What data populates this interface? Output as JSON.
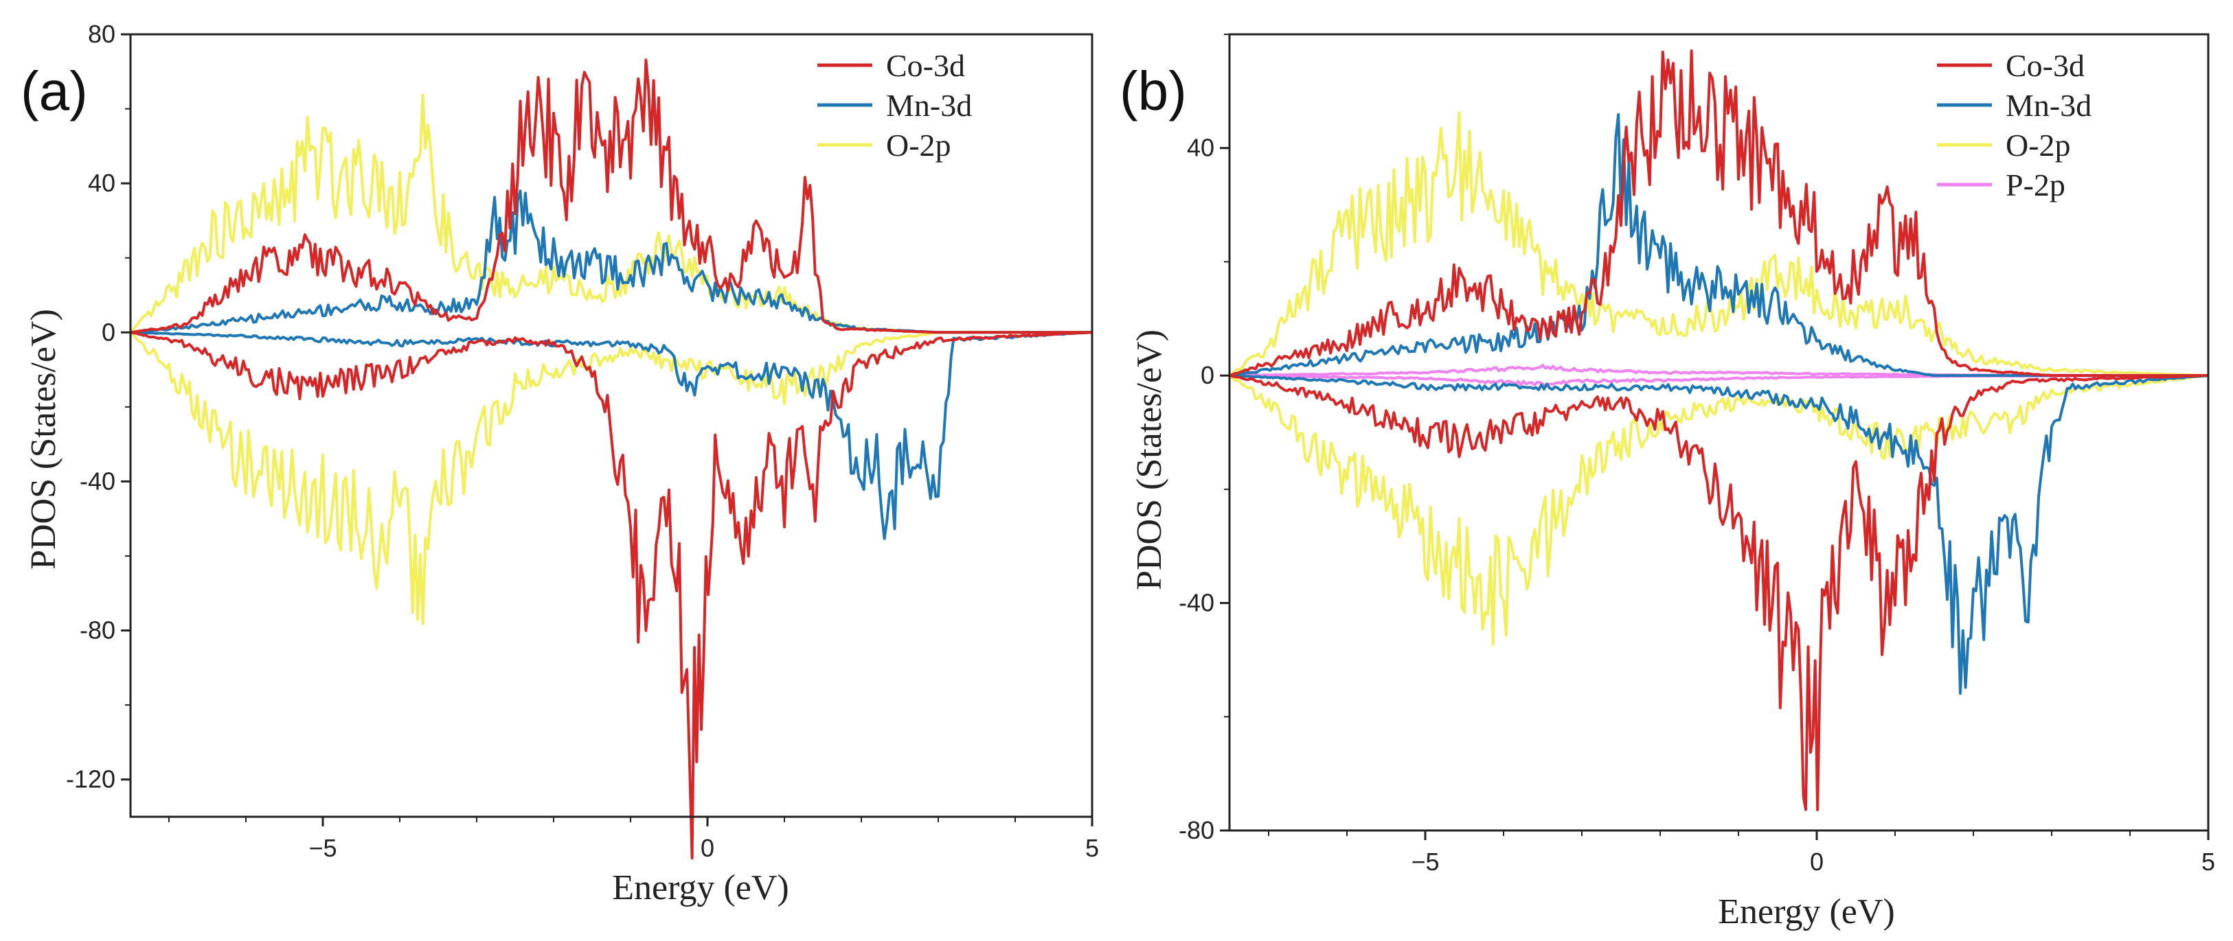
{
  "colors": {
    "Co-3d": "#d62728",
    "Mn-3d": "#1f77b4",
    "O-2p": "#f2ef5c",
    "P-2p": "#ee82ee"
  },
  "chart_data": [
    {
      "type": "line",
      "panel_label": "(a)",
      "xlabel": "Energy (eV)",
      "ylabel": "PDOS (States/eV)",
      "xlim": [
        -7.5,
        5
      ],
      "ylim": [
        -130,
        80
      ],
      "xticks": [
        -5,
        0,
        5
      ],
      "xtick_labels": [
        "−5",
        "0",
        "5"
      ],
      "yticks": [
        -120,
        -80,
        -40,
        0,
        40,
        80
      ],
      "ytick_labels": [
        "-120",
        "-80",
        "-40",
        "0",
        "40",
        "80"
      ],
      "legend_position": "top-right",
      "series": [
        {
          "name": "Co-3d",
          "x_up": [
            -7.5,
            -6.8,
            -6.3,
            -5.8,
            -5.3,
            -4.7,
            -4.0,
            -3.5,
            -3.0,
            -2.6,
            -2.4,
            -2.2,
            -2.0,
            -1.8,
            -1.6,
            -1.3,
            -1.1,
            -0.8,
            -0.6,
            -0.4,
            -0.2,
            0.0,
            0.2,
            0.4,
            0.6,
            0.8,
            1.0,
            1.2,
            1.3,
            1.5,
            1.7,
            3.0,
            5.0
          ],
          "up": [
            0,
            2,
            10,
            18,
            22,
            18,
            12,
            5,
            3,
            30,
            55,
            60,
            50,
            40,
            68,
            45,
            55,
            62,
            48,
            35,
            25,
            22,
            12,
            15,
            25,
            20,
            15,
            22,
            40,
            3,
            1,
            0,
            0
          ],
          "x_down": [
            -7.5,
            -6.8,
            -6.3,
            -5.8,
            -5.3,
            -4.7,
            -4.0,
            -3.5,
            -3.0,
            -2.5,
            -2.0,
            -1.5,
            -1.2,
            -1.0,
            -0.8,
            -0.6,
            -0.4,
            -0.3,
            -0.2,
            -0.05,
            0.1,
            0.3,
            0.5,
            0.8,
            1.0,
            1.2,
            1.4,
            1.6,
            2.0,
            3.0,
            5.0
          ],
          "down": [
            0,
            -3,
            -8,
            -12,
            -15,
            -13,
            -10,
            -6,
            -3,
            -2,
            -3,
            -10,
            -30,
            -60,
            -75,
            -40,
            -60,
            -85,
            -112,
            -80,
            -30,
            -40,
            -55,
            -30,
            -45,
            -25,
            -40,
            -20,
            -8,
            -2,
            0
          ]
        },
        {
          "name": "Mn-3d",
          "x_up": [
            -7.5,
            -6.5,
            -5.8,
            -5.0,
            -4.2,
            -3.6,
            -3.0,
            -2.8,
            -2.6,
            -2.4,
            -2.2,
            -2.0,
            -1.5,
            -1.0,
            -0.5,
            0.0,
            0.5,
            1.0,
            1.5,
            2.0,
            3.0,
            5.0
          ],
          "up": [
            0,
            2,
            4,
            6,
            8,
            6,
            8,
            30,
            20,
            36,
            25,
            20,
            18,
            15,
            20,
            12,
            10,
            8,
            3,
            1,
            0,
            0
          ],
          "x_down": [
            -7.5,
            -6.0,
            -5.0,
            -4.0,
            -3.0,
            -2.0,
            -1.0,
            -0.5,
            -0.2,
            0.0,
            0.5,
            1.0,
            1.5,
            1.8,
            2.0,
            2.2,
            2.3,
            2.5,
            2.8,
            3.0,
            3.2,
            5.0
          ],
          "down": [
            0,
            -1,
            -2,
            -3,
            -2,
            -3,
            -3,
            -5,
            -18,
            -8,
            -12,
            -10,
            -15,
            -25,
            -40,
            -30,
            -58,
            -35,
            -30,
            -40,
            -2,
            0
          ]
        },
        {
          "name": "O-2p",
          "x_up": [
            -7.5,
            -7.0,
            -6.5,
            -6.0,
            -5.5,
            -5.2,
            -4.8,
            -4.5,
            -4.0,
            -3.7,
            -3.3,
            -3.0,
            -2.5,
            -2.0,
            -1.5,
            -1.0,
            -0.5,
            0.0,
            0.5,
            1.0,
            1.5,
            2.0,
            3.0,
            5.0
          ],
          "up": [
            0,
            10,
            25,
            30,
            35,
            48,
            42,
            45,
            35,
            50,
            20,
            15,
            12,
            14,
            10,
            15,
            25,
            12,
            8,
            10,
            3,
            1,
            0,
            0
          ],
          "x_down": [
            -7.5,
            -7.0,
            -6.5,
            -6.0,
            -5.5,
            -5.0,
            -4.5,
            -4.3,
            -4.0,
            -3.7,
            -3.5,
            -3.0,
            -2.5,
            -2.0,
            -1.5,
            -1.0,
            -0.5,
            0.0,
            0.5,
            1.0,
            1.5,
            2.0,
            3.0,
            5.0
          ],
          "down": [
            0,
            -10,
            -25,
            -35,
            -40,
            -45,
            -50,
            -55,
            -50,
            -70,
            -45,
            -30,
            -15,
            -10,
            -8,
            -5,
            -8,
            -10,
            -12,
            -15,
            -12,
            -3,
            0,
            0
          ]
        }
      ]
    },
    {
      "type": "line",
      "panel_label": "(b)",
      "xlabel": "Energy (eV)",
      "ylabel": "PDOS (States/eV)",
      "xlim": [
        -7.5,
        5
      ],
      "ylim": [
        -80,
        60
      ],
      "xticks": [
        -5,
        0,
        5
      ],
      "xtick_labels": [
        "−5",
        "0",
        "5"
      ],
      "yticks": [
        -80,
        -40,
        0,
        40
      ],
      "ytick_labels": [
        "-80",
        "-40",
        "0",
        "40"
      ],
      "legend_position": "top-right",
      "series": [
        {
          "name": "Co-3d",
          "x_up": [
            -7.5,
            -6.8,
            -6.0,
            -5.5,
            -5.0,
            -4.5,
            -4.0,
            -3.5,
            -3.0,
            -2.6,
            -2.4,
            -2.2,
            -2.0,
            -1.8,
            -1.5,
            -1.0,
            -0.5,
            0.0,
            0.3,
            0.6,
            0.9,
            1.0,
            1.2,
            1.4,
            1.6,
            1.8,
            2.0,
            3.0,
            5.0
          ],
          "up": [
            0,
            3,
            6,
            10,
            12,
            18,
            12,
            8,
            10,
            20,
            38,
            45,
            48,
            46,
            45,
            42,
            35,
            25,
            15,
            20,
            30,
            22,
            28,
            15,
            5,
            2,
            1,
            0,
            0
          ],
          "x_down": [
            -7.5,
            -6.8,
            -6.0,
            -5.5,
            -5.0,
            -4.5,
            -4.0,
            -3.5,
            -3.0,
            -2.5,
            -2.0,
            -1.5,
            -1.0,
            -0.5,
            -0.2,
            -0.05,
            0.1,
            0.3,
            0.5,
            0.7,
            0.9,
            1.1,
            1.4,
            1.6,
            2.0,
            2.5,
            5.0
          ],
          "down": [
            0,
            -2,
            -5,
            -8,
            -10,
            -12,
            -10,
            -8,
            -5,
            -5,
            -8,
            -15,
            -25,
            -45,
            -55,
            -73,
            -40,
            -35,
            -15,
            -30,
            -45,
            -35,
            -20,
            -10,
            -4,
            -1,
            0
          ]
        },
        {
          "name": "Mn-3d",
          "x_up": [
            -7.5,
            -6.5,
            -6.0,
            -5.0,
            -4.0,
            -3.5,
            -3.0,
            -2.7,
            -2.5,
            -2.3,
            -2.0,
            -1.5,
            -1.0,
            -0.5,
            0.0,
            0.5,
            1.0,
            1.5,
            2.0,
            3.0,
            5.0
          ],
          "up": [
            0,
            2,
            3,
            5,
            6,
            8,
            10,
            28,
            38,
            25,
            20,
            16,
            14,
            12,
            6,
            3,
            1,
            0,
            0,
            0,
            0
          ],
          "x_down": [
            -7.5,
            -6.0,
            -5.0,
            -4.0,
            -3.0,
            -2.0,
            -1.0,
            0.0,
            0.5,
            1.0,
            1.3,
            1.6,
            1.8,
            1.9,
            2.0,
            2.2,
            2.4,
            2.6,
            2.7,
            2.9,
            3.2,
            5.0
          ],
          "down": [
            0,
            -1,
            -2,
            -2,
            -2,
            -2,
            -3,
            -5,
            -8,
            -12,
            -15,
            -25,
            -45,
            -55,
            -40,
            -35,
            -30,
            -35,
            -37,
            -15,
            -2,
            0
          ]
        },
        {
          "name": "O-2p",
          "x_up": [
            -7.5,
            -7.0,
            -6.5,
            -6.0,
            -5.5,
            -5.0,
            -4.5,
            -4.0,
            -3.5,
            -3.0,
            -2.5,
            -2.0,
            -1.5,
            -1.0,
            -0.5,
            0.0,
            0.5,
            1.0,
            1.5,
            2.0,
            3.0,
            5.0
          ],
          "up": [
            0,
            5,
            15,
            25,
            28,
            32,
            38,
            28,
            18,
            12,
            10,
            8,
            10,
            12,
            18,
            15,
            10,
            12,
            8,
            3,
            1,
            0
          ],
          "x_down": [
            -7.5,
            -7.0,
            -6.5,
            -6.0,
            -5.5,
            -5.0,
            -4.5,
            -4.2,
            -4.0,
            -3.5,
            -3.0,
            -2.5,
            -2.0,
            -1.5,
            -1.0,
            -0.5,
            0.0,
            0.5,
            1.0,
            1.5,
            2.0,
            2.5,
            3.0,
            5.0
          ],
          "down": [
            0,
            -5,
            -12,
            -18,
            -22,
            -28,
            -35,
            -40,
            -38,
            -30,
            -18,
            -12,
            -8,
            -6,
            -5,
            -4,
            -6,
            -10,
            -12,
            -10,
            -8,
            -8,
            -3,
            0
          ]
        },
        {
          "name": "P-2p",
          "x_up": [
            -7.5,
            -5.0,
            -3.5,
            -3.0,
            -2.0,
            -1.0,
            0.0,
            1.0,
            2.0,
            5.0
          ],
          "up": [
            0,
            0.5,
            1.5,
            1,
            0.5,
            0.5,
            0.3,
            0.2,
            0.1,
            0
          ],
          "x_down": [
            -7.5,
            -5.0,
            -3.5,
            -3.0,
            -2.0,
            -1.0,
            0.0,
            1.0,
            2.0,
            5.0
          ],
          "down": [
            0,
            -0.5,
            -1.5,
            -1,
            -0.8,
            -0.5,
            -0.3,
            -0.2,
            -0.1,
            0
          ]
        }
      ]
    }
  ]
}
